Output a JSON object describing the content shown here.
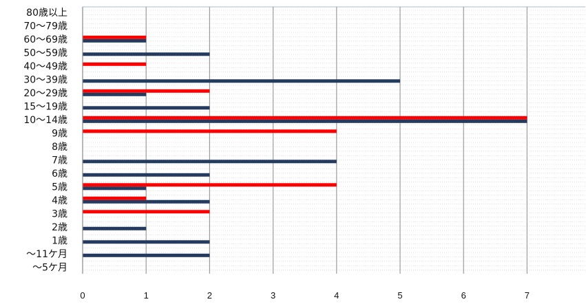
{
  "chart_data": {
    "type": "bar",
    "orientation": "horizontal",
    "categories": [
      "80歳以上",
      "70〜79歳",
      "60〜69歳",
      "50〜59歳",
      "40〜49歳",
      "30〜39歳",
      "20〜29歳",
      "15〜19歳",
      "10〜14歳",
      "9歳",
      "8歳",
      "7歳",
      "6歳",
      "5歳",
      "4歳",
      "3歳",
      "2歳",
      "1歳",
      "〜11ケ月",
      "〜5ケ月"
    ],
    "series": [
      {
        "color": "#ff0000",
        "values": [
          0,
          0,
          1,
          0,
          1,
          0,
          2,
          0,
          7,
          4,
          0,
          0,
          0,
          4,
          1,
          2,
          0,
          0,
          0,
          0
        ]
      },
      {
        "color": "#243a5e",
        "values": [
          0,
          0,
          1,
          2,
          0,
          5,
          1,
          2,
          7,
          0,
          0,
          4,
          2,
          1,
          2,
          0,
          1,
          2,
          2,
          0
        ]
      }
    ],
    "x_ticks": [
      0,
      1,
      2,
      3,
      4,
      5,
      6,
      7
    ],
    "xlim": [
      0,
      7.9
    ],
    "grid": true,
    "legend": "none"
  }
}
